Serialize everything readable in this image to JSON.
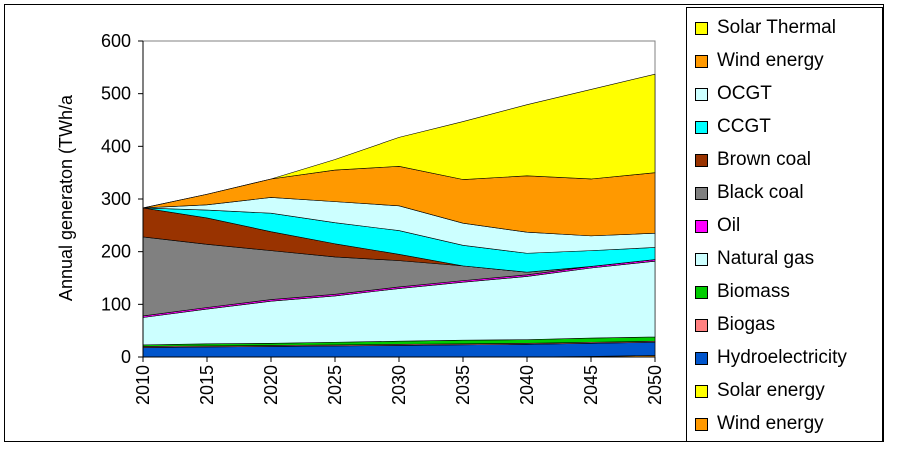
{
  "chart_data": {
    "type": "area",
    "stacked": true,
    "title": "",
    "xlabel": "",
    "ylabel": "Annual generaton (TWh/a",
    "ylim": [
      0,
      600
    ],
    "yticks": [
      0,
      100,
      200,
      300,
      400,
      500,
      600
    ],
    "x": [
      2010,
      2015,
      2020,
      2025,
      2030,
      2035,
      2040,
      2045,
      2050
    ],
    "x_tick_labels": [
      "2010",
      "2015",
      "2020",
      "2025",
      "2030",
      "2035",
      "2040",
      "2045",
      "2050"
    ],
    "grid": false,
    "legend_position": "right",
    "series": [
      {
        "name": "Wind energy",
        "color": "#FF9900",
        "values": [
          0,
          0,
          0,
          0,
          0,
          0,
          0,
          1,
          3
        ]
      },
      {
        "name": "Solar energy",
        "color": "#FFFF00",
        "values": [
          0,
          0,
          0,
          0,
          0,
          0,
          0,
          0,
          0
        ]
      },
      {
        "name": "Hydroelectricity",
        "color": "#0055CC",
        "values": [
          18,
          19,
          20,
          21,
          22,
          23,
          24,
          25,
          25
        ]
      },
      {
        "name": "Biogas",
        "color": "#FF8080",
        "values": [
          2,
          2,
          2,
          2,
          2,
          2,
          2,
          2,
          2
        ]
      },
      {
        "name": "Biomass",
        "color": "#00CC00",
        "values": [
          3,
          4,
          4,
          5,
          6,
          7,
          7,
          8,
          8
        ]
      },
      {
        "name": "Natural gas",
        "color": "#CCFFFF",
        "values": [
          52,
          66,
          80,
          88,
          100,
          110,
          120,
          133,
          144
        ]
      },
      {
        "name": "Oil",
        "color": "#FF00FF",
        "values": [
          3,
          3,
          3,
          3,
          3,
          3,
          3,
          3,
          3
        ]
      },
      {
        "name": "Black coal",
        "color": "#808080",
        "values": [
          150,
          120,
          93,
          71,
          50,
          28,
          5,
          0,
          0
        ]
      },
      {
        "name": "Brown coal",
        "color": "#993300",
        "values": [
          55,
          50,
          36,
          25,
          12,
          0,
          0,
          0,
          0
        ]
      },
      {
        "name": "CCGT",
        "color": "#00FFFF",
        "values": [
          0,
          15,
          35,
          40,
          45,
          39,
          36,
          30,
          23
        ]
      },
      {
        "name": "OCGT",
        "color": "#CCFFFF",
        "values": [
          0,
          10,
          30,
          40,
          47,
          42,
          40,
          28,
          27
        ]
      },
      {
        "name": "Wind energy",
        "color": "#FF9900",
        "values": [
          0,
          20,
          35,
          60,
          75,
          83,
          107,
          108,
          115
        ]
      },
      {
        "name": "Solar Thermal",
        "color": "#FFFF00",
        "values": [
          0,
          0,
          0,
          20,
          55,
          110,
          135,
          170,
          187
        ]
      }
    ]
  },
  "legend": {
    "items": [
      {
        "label": "Solar Thermal",
        "color": "#FFFF00"
      },
      {
        "label": "Wind energy",
        "color": "#FF9900"
      },
      {
        "label": "OCGT",
        "color": "#CCFFFF"
      },
      {
        "label": "CCGT",
        "color": "#00FFFF"
      },
      {
        "label": "Brown coal",
        "color": "#993300"
      },
      {
        "label": "Black coal",
        "color": "#808080"
      },
      {
        "label": "Oil",
        "color": "#FF00FF"
      },
      {
        "label": "Natural gas",
        "color": "#CCFFFF"
      },
      {
        "label": "Biomass",
        "color": "#00CC00"
      },
      {
        "label": "Biogas",
        "color": "#FF8080"
      },
      {
        "label": "Hydroelectricity",
        "color": "#0055CC"
      },
      {
        "label": "Solar energy",
        "color": "#FFFF00"
      },
      {
        "label": "Wind energy",
        "color": "#FF9900"
      }
    ]
  }
}
